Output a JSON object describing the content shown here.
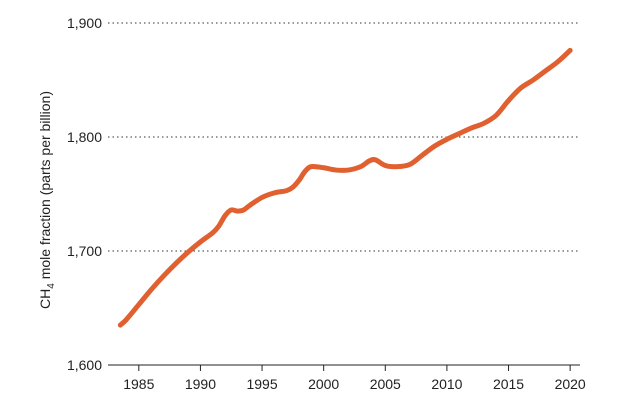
{
  "chart_data": {
    "type": "line",
    "title": "",
    "xlabel": "",
    "ylabel": {
      "prefix": "CH",
      "subscript": "4",
      "suffix": " mole fraction (parts per billion)"
    },
    "xlim": [
      1982.5,
      2020.8
    ],
    "ylim": [
      1600,
      1900
    ],
    "x_ticks": [
      1985,
      1990,
      1995,
      2000,
      2005,
      2010,
      2015,
      2020
    ],
    "y_ticks": [
      1600,
      1700,
      1800,
      1900
    ],
    "y_tick_labels": [
      "1,600",
      "1,700",
      "1,800",
      "1,900"
    ],
    "grid": "horizontal-dotted",
    "series": [
      {
        "color": "#e06030",
        "points": [
          [
            1983.5,
            1635
          ],
          [
            1984.0,
            1640
          ],
          [
            1985.0,
            1653
          ],
          [
            1986.0,
            1666
          ],
          [
            1987.0,
            1678
          ],
          [
            1988.0,
            1689
          ],
          [
            1989.0,
            1699
          ],
          [
            1990.0,
            1708
          ],
          [
            1991.0,
            1716
          ],
          [
            1991.5,
            1722
          ],
          [
            1992.0,
            1731
          ],
          [
            1992.5,
            1736
          ],
          [
            1993.0,
            1735
          ],
          [
            1993.5,
            1736
          ],
          [
            1994.0,
            1740
          ],
          [
            1995.0,
            1747
          ],
          [
            1996.0,
            1751
          ],
          [
            1997.0,
            1753
          ],
          [
            1997.5,
            1756
          ],
          [
            1998.0,
            1762
          ],
          [
            1998.5,
            1770
          ],
          [
            1999.0,
            1774
          ],
          [
            2000.0,
            1773
          ],
          [
            2001.0,
            1771
          ],
          [
            2002.0,
            1771
          ],
          [
            2003.0,
            1774
          ],
          [
            2003.7,
            1779
          ],
          [
            2004.2,
            1780
          ],
          [
            2005.0,
            1775
          ],
          [
            2006.0,
            1774
          ],
          [
            2007.0,
            1776
          ],
          [
            2008.0,
            1784
          ],
          [
            2009.0,
            1792
          ],
          [
            2010.0,
            1798
          ],
          [
            2011.0,
            1803
          ],
          [
            2012.0,
            1808
          ],
          [
            2013.0,
            1812
          ],
          [
            2014.0,
            1819
          ],
          [
            2015.0,
            1832
          ],
          [
            2016.0,
            1843
          ],
          [
            2017.0,
            1850
          ],
          [
            2018.0,
            1858
          ],
          [
            2019.0,
            1866
          ],
          [
            2020.0,
            1876
          ]
        ]
      }
    ]
  }
}
